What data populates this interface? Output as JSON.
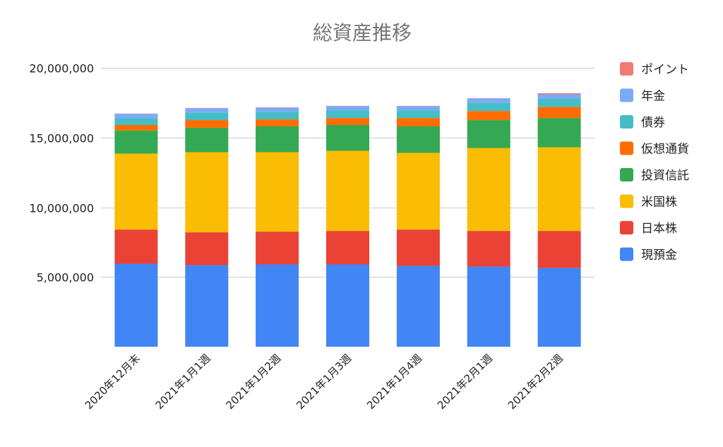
{
  "chart_data": {
    "type": "bar",
    "stacked": true,
    "title": "総資産推移",
    "xlabel": "",
    "ylabel": "",
    "ylim": [
      0,
      20000000
    ],
    "yticks": [
      5000000,
      10000000,
      15000000,
      20000000
    ],
    "ytick_labels": [
      "5,000,000",
      "10,000,000",
      "15,000,000",
      "20,000,000"
    ],
    "grid": true,
    "legend_position": "right",
    "categories": [
      "2020年12月末",
      "2021年1月1週",
      "2021年1月2週",
      "2021年1月3週",
      "2021年1月4週",
      "2021年2月1週",
      "2021年2月2週"
    ],
    "series": [
      {
        "name": "現預金",
        "color": "#4285f4",
        "values": [
          5950000,
          5850000,
          5900000,
          5900000,
          5800000,
          5750000,
          5650000
        ]
      },
      {
        "name": "日本株",
        "color": "#ea4335",
        "values": [
          2450000,
          2350000,
          2350000,
          2400000,
          2600000,
          2550000,
          2650000
        ]
      },
      {
        "name": "米国株",
        "color": "#fbbc04",
        "values": [
          5450000,
          5750000,
          5700000,
          5750000,
          5500000,
          5950000,
          6000000
        ]
      },
      {
        "name": "投資信託",
        "color": "#34a853",
        "values": [
          1650000,
          1750000,
          1850000,
          1850000,
          1900000,
          2000000,
          2100000
        ]
      },
      {
        "name": "仮想通貨",
        "color": "#ff6d01",
        "values": [
          400000,
          550000,
          500000,
          500000,
          600000,
          650000,
          800000
        ]
      },
      {
        "name": "債券",
        "color": "#46bdc6",
        "values": [
          500000,
          550000,
          550000,
          550000,
          550000,
          600000,
          600000
        ]
      },
      {
        "name": "年金",
        "color": "#7baaf7",
        "values": [
          300000,
          300000,
          300000,
          300000,
          300000,
          300000,
          300000
        ]
      },
      {
        "name": "ポイント",
        "color": "#f07b72",
        "values": [
          20000,
          20000,
          20000,
          20000,
          20000,
          20000,
          80000
        ]
      }
    ]
  }
}
